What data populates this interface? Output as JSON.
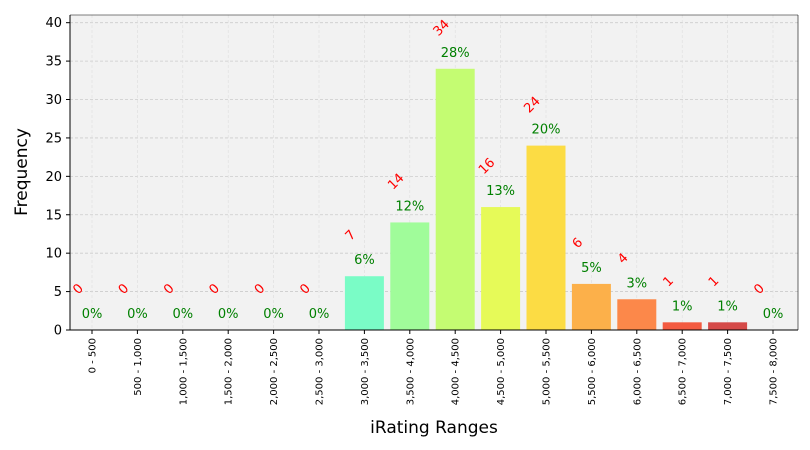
{
  "chart_data": {
    "type": "bar",
    "xlabel": "iRating Ranges",
    "ylabel": "Frequency",
    "ylim": [
      0,
      41
    ],
    "yticks": [
      0,
      5,
      10,
      15,
      20,
      25,
      30,
      35,
      40
    ],
    "grid": true,
    "categories": [
      "0 - 500",
      "500 - 1,000",
      "1,000 - 1,500",
      "1,500 - 2,000",
      "2,000 - 2,500",
      "2,500 - 3,000",
      "3,000 - 3,500",
      "3,500 - 4,000",
      "4,000 - 4,500",
      "4,500 - 5,000",
      "5,000 - 5,500",
      "5,500 - 6,000",
      "6,000 - 6,500",
      "6,500 - 7,000",
      "7,000 - 7,500",
      "7,500 - 8,000"
    ],
    "values": [
      0,
      0,
      0,
      0,
      0,
      0,
      7,
      14,
      34,
      16,
      24,
      6,
      4,
      1,
      1,
      0
    ],
    "count_labels": [
      "0",
      "0",
      "0",
      "0",
      "0",
      "0",
      "7",
      "14",
      "34",
      "16",
      "24",
      "6",
      "4",
      "1",
      "1",
      "0"
    ],
    "percent_labels": [
      "0%",
      "0%",
      "0%",
      "0%",
      "0%",
      "0%",
      "6%",
      "12%",
      "28%",
      "13%",
      "20%",
      "5%",
      "3%",
      "1%",
      "1%",
      "0%"
    ],
    "colors": [
      "#5a7bf0",
      "#5a9cf4",
      "#4ec0f4",
      "#3ad8e8",
      "#4fe8d0",
      "#62f4c0",
      "#7afcc6",
      "#a0fc9a",
      "#c4fc72",
      "#e6fa58",
      "#fcdc44",
      "#fcb04a",
      "#fc884a",
      "#f35a40",
      "#d54a48",
      "#b03040"
    ]
  }
}
